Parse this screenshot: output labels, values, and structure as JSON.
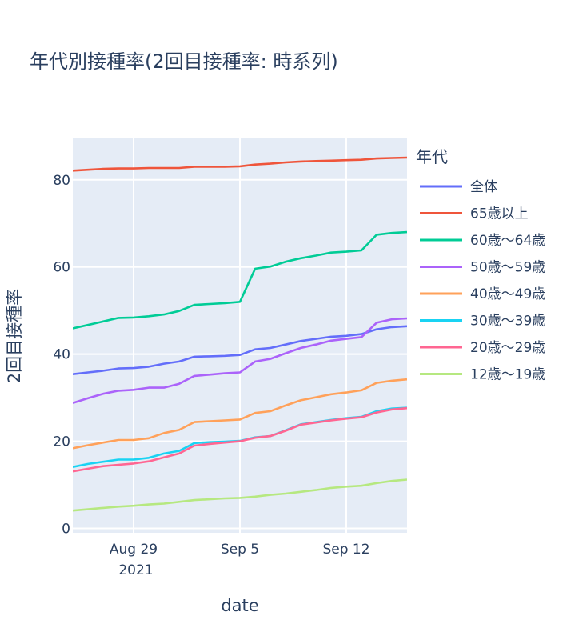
{
  "chart_data": {
    "type": "line",
    "title": "年代別接種率(2回目接種率: 時系列)",
    "xlabel": "date",
    "ylabel": "2回目接種率",
    "legend_title": "年代",
    "legend_position": "right",
    "grid": true,
    "x_ticks": [
      "Aug 29",
      "Sep 5",
      "Sep 12"
    ],
    "x_tick_year": "2021",
    "y_ticks": [
      "0",
      "20",
      "40",
      "60",
      "80"
    ],
    "xlim": [
      "2021-08-25",
      "2021-09-16"
    ],
    "ylim": [
      -1,
      89.5
    ],
    "x": [
      "2021-08-25",
      "2021-08-26",
      "2021-08-27",
      "2021-08-28",
      "2021-08-29",
      "2021-08-30",
      "2021-08-31",
      "2021-09-01",
      "2021-09-02",
      "2021-09-03",
      "2021-09-04",
      "2021-09-05",
      "2021-09-06",
      "2021-09-07",
      "2021-09-08",
      "2021-09-09",
      "2021-09-10",
      "2021-09-11",
      "2021-09-12",
      "2021-09-13",
      "2021-09-14",
      "2021-09-15",
      "2021-09-16"
    ],
    "series": [
      {
        "name": "全体",
        "color": "#636efa",
        "values": [
          35.4,
          35.8,
          36.2,
          36.7,
          36.8,
          37.1,
          37.8,
          38.3,
          39.4,
          39.5,
          39.6,
          39.8,
          41.1,
          41.4,
          42.2,
          43.0,
          43.5,
          44.0,
          44.2,
          44.6,
          45.7,
          46.2,
          46.4
        ]
      },
      {
        "name": "65歳以上",
        "color": "#ef553b",
        "values": [
          82.1,
          82.3,
          82.5,
          82.6,
          82.6,
          82.7,
          82.7,
          82.7,
          83.0,
          83.0,
          83.0,
          83.1,
          83.5,
          83.7,
          84.0,
          84.2,
          84.3,
          84.4,
          84.5,
          84.6,
          84.9,
          85.0,
          85.1
        ]
      },
      {
        "name": "60歳～64歳",
        "color": "#00cc96",
        "values": [
          45.9,
          46.7,
          47.5,
          48.3,
          48.4,
          48.7,
          49.1,
          49.9,
          51.3,
          51.5,
          51.7,
          52.0,
          59.6,
          60.1,
          61.2,
          62.0,
          62.6,
          63.3,
          63.5,
          63.8,
          67.4,
          67.8,
          68.0
        ]
      },
      {
        "name": "50歳～59歳",
        "color": "#ab63fa",
        "values": [
          28.8,
          29.9,
          30.9,
          31.6,
          31.8,
          32.3,
          32.3,
          33.2,
          35.0,
          35.3,
          35.6,
          35.8,
          38.3,
          38.9,
          40.2,
          41.4,
          42.2,
          43.1,
          43.5,
          43.9,
          47.2,
          48.0,
          48.2
        ]
      },
      {
        "name": "40歳～49歳",
        "color": "#ffa15a",
        "values": [
          18.4,
          19.1,
          19.7,
          20.3,
          20.3,
          20.7,
          21.9,
          22.6,
          24.4,
          24.6,
          24.8,
          25.0,
          26.5,
          26.9,
          28.2,
          29.4,
          30.1,
          30.8,
          31.2,
          31.7,
          33.4,
          33.9,
          34.2
        ]
      },
      {
        "name": "30歳～39歳",
        "color": "#19d3f3",
        "values": [
          14.1,
          14.8,
          15.3,
          15.8,
          15.8,
          16.2,
          17.2,
          17.8,
          19.6,
          19.8,
          19.9,
          20.1,
          20.9,
          21.2,
          22.5,
          23.9,
          24.4,
          24.9,
          25.3,
          25.6,
          26.9,
          27.5,
          27.7
        ]
      },
      {
        "name": "20歳～29歳",
        "color": "#ff6692",
        "values": [
          13.1,
          13.7,
          14.3,
          14.6,
          14.9,
          15.4,
          16.3,
          17.2,
          19.0,
          19.4,
          19.7,
          20.0,
          20.8,
          21.2,
          22.4,
          23.8,
          24.3,
          24.8,
          25.2,
          25.5,
          26.6,
          27.3,
          27.6
        ]
      },
      {
        "name": "12歳～19歳",
        "color": "#b6e880",
        "values": [
          4.1,
          4.4,
          4.7,
          5.0,
          5.2,
          5.5,
          5.7,
          6.1,
          6.5,
          6.7,
          6.9,
          7.0,
          7.3,
          7.7,
          8.0,
          8.4,
          8.8,
          9.3,
          9.6,
          9.8,
          10.4,
          10.9,
          11.2
        ]
      }
    ]
  }
}
